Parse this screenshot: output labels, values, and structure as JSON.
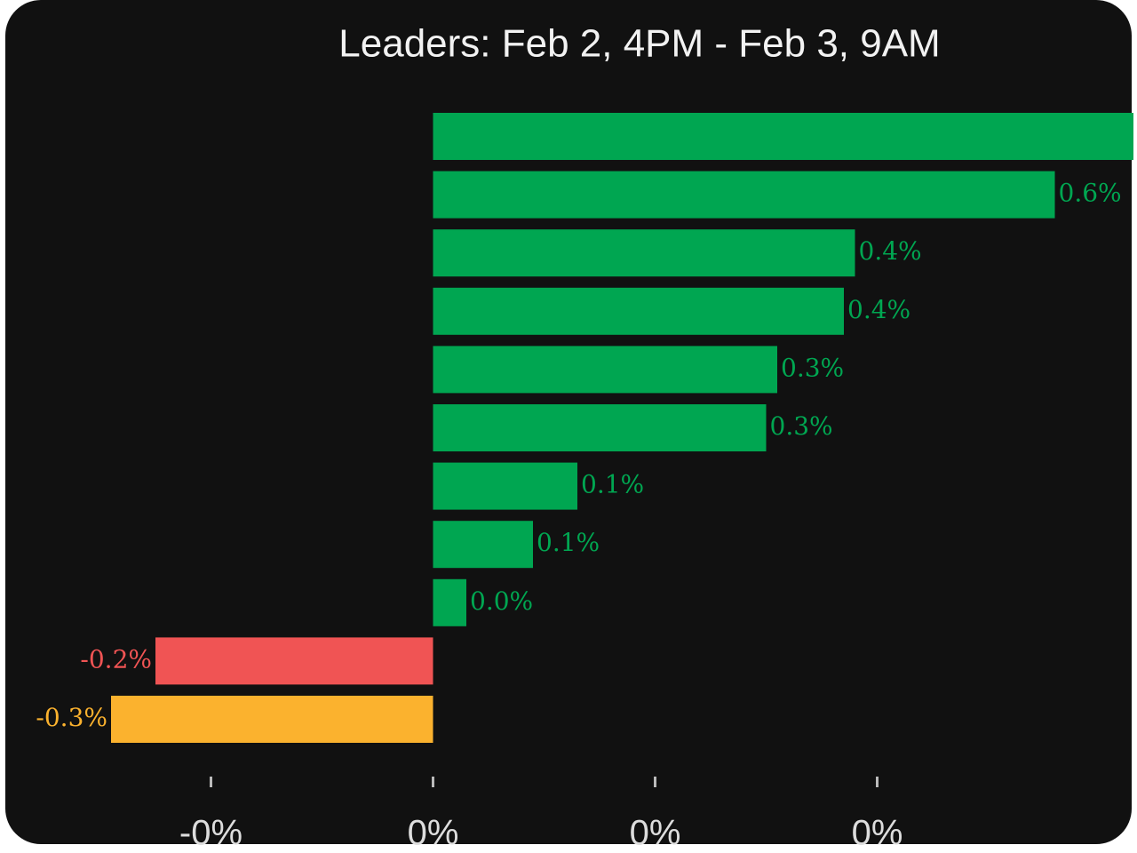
{
  "chart_data": {
    "type": "hbar",
    "title": "Leaders: Feb 2, 4PM - Feb 3, 9AM",
    "values": [
      0.65,
      0.56,
      0.38,
      0.37,
      0.31,
      0.3,
      0.13,
      0.09,
      0.03,
      -0.25,
      -0.29
    ],
    "value_labels": [
      null,
      "0.6%",
      "0.4%",
      "0.4%",
      "0.3%",
      "0.3%",
      "0.1%",
      "0.1%",
      "0.0%",
      "-0.2%",
      "-0.3%"
    ],
    "colors": [
      "#00a651",
      "#00a651",
      "#00a651",
      "#00a651",
      "#00a651",
      "#00a651",
      "#00a651",
      "#00a651",
      "#00a651",
      "#f05454",
      "#fbb22e"
    ],
    "xlim": [
      -0.39,
      0.634
    ],
    "xticks": [
      {
        "value": -0.2,
        "label": "-0%"
      },
      {
        "value": 0,
        "label": "0%"
      },
      {
        "value": 0.2,
        "label": "0%"
      },
      {
        "value": 0.4,
        "label": "0%"
      }
    ]
  }
}
